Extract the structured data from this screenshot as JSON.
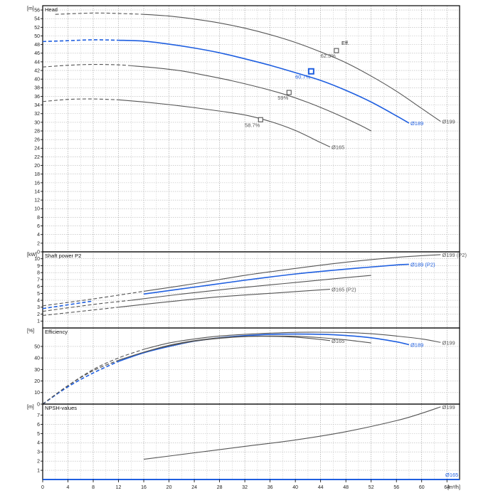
{
  "chart_data": {
    "type": "line",
    "x_axis": {
      "unit": "[m³/h]",
      "range": [
        0,
        66
      ],
      "ticks": [
        0,
        4,
        8,
        12,
        16,
        20,
        24,
        28,
        32,
        36,
        40,
        44,
        48,
        52,
        56,
        60,
        64
      ]
    },
    "colors": {
      "grey": "#555555",
      "blue": "#1f5fe0",
      "frame": "#000000"
    },
    "panels": [
      {
        "id": "head",
        "title": "Head",
        "unit": "[m]",
        "ylim": [
          0,
          57
        ],
        "ticks": [
          0,
          2,
          4,
          6,
          8,
          10,
          12,
          14,
          16,
          18,
          20,
          22,
          24,
          26,
          28,
          30,
          32,
          34,
          36,
          38,
          40,
          42,
          44,
          46,
          48,
          50,
          52,
          54,
          56
        ],
        "series": [
          {
            "name": "Ø199",
            "color": "grey",
            "dashed_until": 16,
            "x": [
              2,
              8,
              12,
              16,
              20,
              24,
              28,
              32,
              36,
              40,
              44,
              48,
              52,
              56,
              60,
              63
            ],
            "y": [
              55,
              55.3,
              55.2,
              55,
              54.6,
              53.9,
              53,
              51.8,
              50.3,
              48.5,
              46.3,
              43.8,
              40.7,
              37.2,
              33.2,
              30.2
            ]
          },
          {
            "name": "Ø189",
            "color": "blue",
            "dashed_until": 12,
            "x": [
              0,
              4,
              8,
              12,
              16,
              20,
              24,
              28,
              32,
              36,
              40,
              44,
              48,
              52,
              56,
              58
            ],
            "y": [
              48.7,
              48.9,
              49.1,
              49,
              48.8,
              48.1,
              47.2,
              46.1,
              44.7,
              43.2,
              41.5,
              39.7,
              37.4,
              34.7,
              31.5,
              29.8
            ]
          },
          {
            "name": "",
            "color": "grey",
            "dashed_until": 14,
            "x": [
              0,
              4,
              8,
              12,
              14,
              18,
              22,
              26,
              30,
              34,
              38,
              42,
              46,
              50,
              52
            ],
            "y": [
              42.8,
              43.2,
              43.4,
              43.3,
              43.1,
              42.6,
              41.9,
              40.8,
              39.6,
              38.2,
              36.6,
              34.6,
              32.2,
              29.5,
              28
            ]
          },
          {
            "name": "Ø165",
            "color": "grey",
            "dashed_until": 12,
            "x": [
              0,
              4,
              8,
              12,
              16,
              20,
              24,
              28,
              32,
              36,
              40,
              44,
              45.5
            ],
            "y": [
              34.8,
              35.3,
              35.4,
              35.2,
              34.7,
              34.1,
              33.4,
              32.6,
              31.7,
              30.2,
              28.1,
              25.3,
              24.3
            ]
          }
        ],
        "markers": [
          {
            "x": 46.5,
            "y": 46.6,
            "label": "62.3%",
            "color": "grey",
            "big": false
          },
          {
            "x": 42.5,
            "y": 41.8,
            "label": "60.7%",
            "color": "blue",
            "big": true
          },
          {
            "x": 39,
            "y": 36.9,
            "label": "59%",
            "color": "grey",
            "big": false
          },
          {
            "x": 34.5,
            "y": 30.6,
            "label": "58.7%",
            "color": "grey",
            "big": false
          }
        ],
        "annotations": [
          {
            "text": "Eff.",
            "x": 47.3,
            "y": 47.9
          }
        ]
      },
      {
        "id": "power",
        "title": "Shaft power P2",
        "unit": "[kW]",
        "ylim": [
          0,
          11
        ],
        "ticks": [
          1,
          2,
          3,
          4,
          5,
          6,
          7,
          8,
          9,
          10
        ],
        "series": [
          {
            "name": "Ø199 (P2)",
            "color": "grey",
            "dashed_until": 16,
            "x": [
              0,
              8,
              16,
              24,
              32,
              40,
              48,
              56,
              63
            ],
            "y": [
              3.2,
              4.2,
              5.3,
              6.4,
              7.6,
              8.6,
              9.5,
              10.2,
              10.6
            ]
          },
          {
            "name": "Ø189 (P2)",
            "color": "blue",
            "dashed_until": 12,
            "x": [
              0,
              8,
              16,
              24,
              32,
              40,
              48,
              56,
              58
            ],
            "y": [
              2.8,
              3.9,
              4.9,
              5.9,
              6.9,
              7.8,
              8.5,
              9.1,
              9.2
            ]
          },
          {
            "name": "",
            "color": "grey",
            "dashed_until": 14,
            "x": [
              0,
              8,
              14,
              22,
              30,
              38,
              46,
              52
            ],
            "y": [
              2.4,
              3.4,
              4.0,
              4.9,
              5.7,
              6.4,
              7.1,
              7.6
            ]
          },
          {
            "name": "Ø165 (P2)",
            "color": "grey",
            "dashed_until": 12,
            "x": [
              0,
              8,
              12,
              20,
              28,
              36,
              45.5
            ],
            "y": [
              1.8,
              2.6,
              3.0,
              3.8,
              4.5,
              5.0,
              5.6
            ]
          }
        ]
      },
      {
        "id": "efficiency",
        "title": "Efficiency",
        "unit": "[%]",
        "ylim": [
          0,
          66
        ],
        "ticks": [
          0,
          10,
          20,
          30,
          40,
          50
        ],
        "series": [
          {
            "name": "Ø199",
            "color": "grey",
            "dashed_until": 16,
            "x": [
              0,
              4,
              8,
              12,
              16,
              20,
              24,
              28,
              32,
              36,
              40,
              44,
              48,
              52,
              56,
              60,
              63
            ],
            "y": [
              0,
              16,
              30,
              40,
              47.5,
              53,
              56.5,
              59,
              60.5,
              61.5,
              62.2,
              62.3,
              62,
              61,
              59,
              56.5,
              53.5
            ]
          },
          {
            "name": "Ø189",
            "color": "blue",
            "dashed_until": 12,
            "x": [
              0,
              4,
              8,
              12,
              16,
              20,
              24,
              28,
              32,
              36,
              40,
              44,
              48,
              52,
              56,
              58
            ],
            "y": [
              0,
              15,
              27,
              37,
              44.5,
              50,
              54.5,
              57.5,
              59.3,
              60.4,
              60.7,
              60.5,
              59.5,
              57.5,
              54,
              51.5
            ]
          },
          {
            "name": "",
            "color": "grey",
            "dashed_until": 14,
            "x": [
              0,
              4,
              8,
              12,
              16,
              20,
              24,
              28,
              32,
              36,
              40,
              44,
              48,
              52
            ],
            "y": [
              0,
              16,
              29,
              38,
              45,
              51,
              55,
              57.5,
              58.7,
              59,
              58.8,
              57.6,
              55.7,
              53
            ]
          },
          {
            "name": "Ø165",
            "color": "grey",
            "dashed_until": 12,
            "x": [
              0,
              4,
              8,
              12,
              16,
              20,
              24,
              28,
              32,
              36,
              40,
              44,
              45.5
            ],
            "y": [
              0,
              16,
              29,
              38,
              45,
              50.5,
              54.5,
              57,
              58.5,
              58.7,
              58,
              56,
              55
            ]
          }
        ]
      },
      {
        "id": "npsh",
        "title": "NPSH-values",
        "unit": "[m]",
        "ylim": [
          0,
          8.2
        ],
        "ticks": [
          1,
          2,
          3,
          4,
          5,
          6,
          7
        ],
        "series": [
          {
            "name": "Ø199",
            "color": "grey",
            "dashed_until": 0,
            "x": [
              16,
              24,
              32,
              40,
              48,
              56,
              60,
              63
            ],
            "y": [
              2.2,
              2.9,
              3.6,
              4.3,
              5.2,
              6.4,
              7.2,
              7.9
            ]
          }
        ]
      }
    ],
    "bottom_label": "Ø165"
  }
}
